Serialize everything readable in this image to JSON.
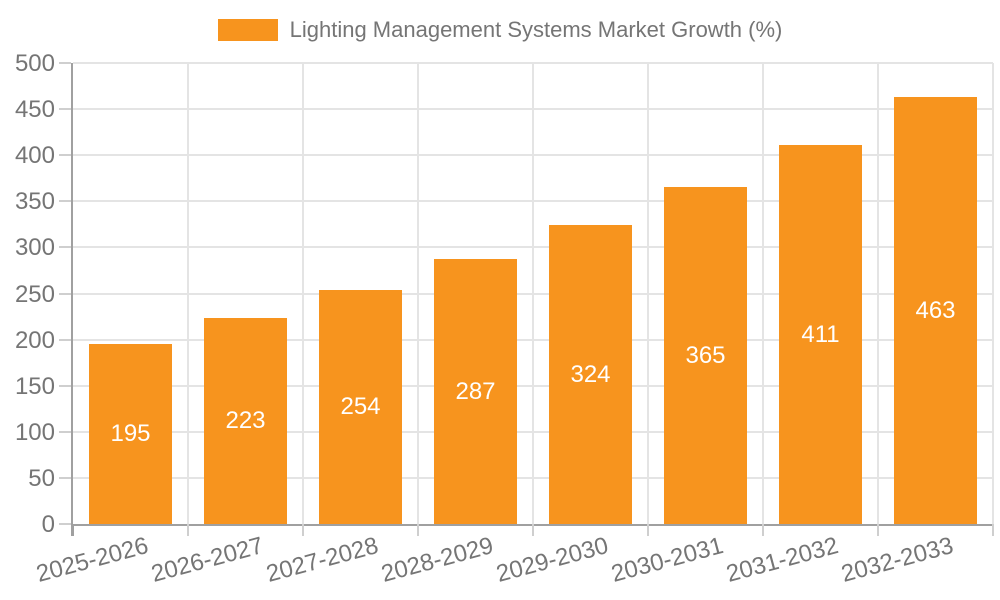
{
  "legend": {
    "label": "Lighting Management Systems Market Growth (%)",
    "position": "top"
  },
  "chart_data": {
    "type": "bar",
    "title": "Lighting Management Systems Market Growth (%)",
    "categories": [
      "2025-2026",
      "2026-2027",
      "2027-2028",
      "2028-2029",
      "2029-2030",
      "2030-2031",
      "2031-2032",
      "2032-2033"
    ],
    "values": [
      195,
      223,
      254,
      287,
      324,
      365,
      411,
      463
    ],
    "xlabel": "",
    "ylabel": "",
    "ylim": [
      0,
      500
    ],
    "ytick_step": 50,
    "yticks": [
      0,
      50,
      100,
      150,
      200,
      250,
      300,
      350,
      400,
      450,
      500
    ],
    "grid": true,
    "legend_position": "top",
    "bar_color": "#F7941E",
    "value_label_color": "#FFFFFF",
    "axis_color": "#A0A0A0",
    "tick_color": "#CFCFCF",
    "tick_label_color": "#757575",
    "gridline_color": "#E4E4E4",
    "x_label_rotation_deg": -15
  }
}
